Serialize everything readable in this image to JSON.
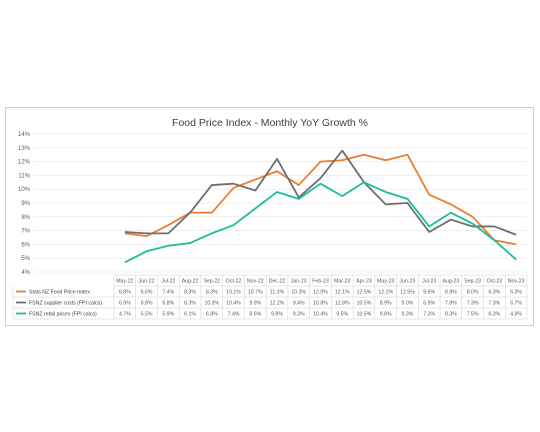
{
  "chart_data": {
    "type": "line",
    "title": "Food Price Index - Monthly YoY Growth %",
    "y_ticks": [
      "4%",
      "5%",
      "6%",
      "7%",
      "8%",
      "9%",
      "10%",
      "11%",
      "12%",
      "13%",
      "14%"
    ],
    "ylim": [
      4,
      14
    ],
    "grid": true,
    "legend": "data-table-left",
    "categories": [
      "May-22",
      "Jun-22",
      "Jul-22",
      "Aug-22",
      "Sep-22",
      "Oct-22",
      "Nov-22",
      "Dec-22",
      "Jan-23",
      "Feb-23",
      "Mar-23",
      "Apr-23",
      "May-23",
      "Jun-23",
      "Jul-23",
      "Aug-23",
      "Sep-23",
      "Oct-23",
      "Nov-23"
    ],
    "series": [
      {
        "name": "Stats NZ Food Price Index",
        "color": "#ed7d31",
        "values": [
          6.8,
          6.6,
          7.4,
          8.3,
          8.3,
          10.1,
          10.7,
          11.3,
          10.3,
          12.0,
          12.1,
          12.5,
          12.1,
          12.5,
          9.6,
          8.9,
          8.0,
          6.3,
          6.0
        ],
        "labels": [
          "6.8%",
          "6.6%",
          "7.4%",
          "8.3%",
          "8.3%",
          "10.1%",
          "10.7%",
          "11.3%",
          "10.3%",
          "12.0%",
          "12.1%",
          "12.5%",
          "12.1%",
          "12.5%",
          "9.6%",
          "8.9%",
          "8.0%",
          "6.3%",
          "6.0%"
        ]
      },
      {
        "name": "FSNZ supplier costs (FPI calcs)",
        "color": "#6e6e6e",
        "values": [
          6.9,
          6.8,
          6.8,
          8.3,
          10.3,
          10.4,
          9.9,
          12.2,
          9.4,
          10.8,
          12.8,
          10.5,
          8.9,
          9.0,
          6.9,
          7.8,
          7.3,
          7.3,
          6.7
        ],
        "labels": [
          "6.9%",
          "6.8%",
          "6.8%",
          "8.3%",
          "10.3%",
          "10.4%",
          "9.9%",
          "12.2%",
          "9.4%",
          "10.8%",
          "12.8%",
          "10.5%",
          "8.9%",
          "9.0%",
          "6.9%",
          "7.8%",
          "7.3%",
          "7.3%",
          "6.7%"
        ]
      },
      {
        "name": "FSNZ retail prices (FPI calcs)",
        "color": "#1abc9c",
        "values": [
          4.7,
          5.5,
          5.9,
          6.1,
          6.8,
          7.4,
          8.6,
          9.8,
          9.3,
          10.4,
          9.5,
          10.5,
          9.8,
          9.3,
          7.3,
          8.3,
          7.5,
          6.3,
          4.9
        ],
        "labels": [
          "4.7%",
          "5.5%",
          "5.9%",
          "6.1%",
          "6.8%",
          "7.4%",
          "8.6%",
          "9.8%",
          "9.3%",
          "10.4%",
          "9.5%",
          "10.5%",
          "9.8%",
          "9.3%",
          "7.3%",
          "8.3%",
          "7.5%",
          "6.3%",
          "4.9%"
        ]
      }
    ]
  }
}
